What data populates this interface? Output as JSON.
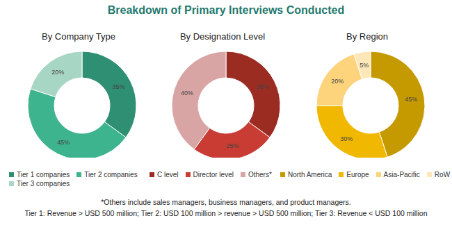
{
  "title": "Breakdown of Primary Interviews Conducted",
  "footnotes": [
    "*Others include sales managers, business managers, and product managers.",
    "Tier 1: Revenue > USD 500 million; Tier 2: USD 100 million > revenue > USD 500 million; Tier 3: Revenue < USD 100 million"
  ],
  "chart_data": [
    {
      "type": "pie",
      "title": "By Company Type",
      "categories": [
        "Tier 1 companies",
        "Tier 2 companies",
        "Tier 3 companies"
      ],
      "values": [
        35,
        45,
        20
      ],
      "value_labels": [
        "35%",
        "45%",
        "20%"
      ],
      "colors": [
        "#2f8f72",
        "#3db38e",
        "#a8d6c4"
      ],
      "data_labels": true
    },
    {
      "type": "pie",
      "title": "By Designation Level",
      "categories": [
        "C level",
        "Director level",
        "Others*"
      ],
      "values": [
        35,
        25,
        40
      ],
      "value_labels": [
        "35%",
        "25%",
        "40%"
      ],
      "colors": [
        "#9b2c22",
        "#c83c33",
        "#d8a4a4"
      ],
      "data_labels": true
    },
    {
      "type": "pie",
      "title": "By Region",
      "categories": [
        "North America",
        "Europe",
        "Asia-Pacific",
        "RoW"
      ],
      "values": [
        45,
        30,
        20,
        5
      ],
      "value_labels": [
        "45%",
        "30%",
        "20%",
        "5%"
      ],
      "colors": [
        "#c49a00",
        "#f0b800",
        "#fdd47c",
        "#fde6b8"
      ],
      "data_labels": true
    }
  ]
}
